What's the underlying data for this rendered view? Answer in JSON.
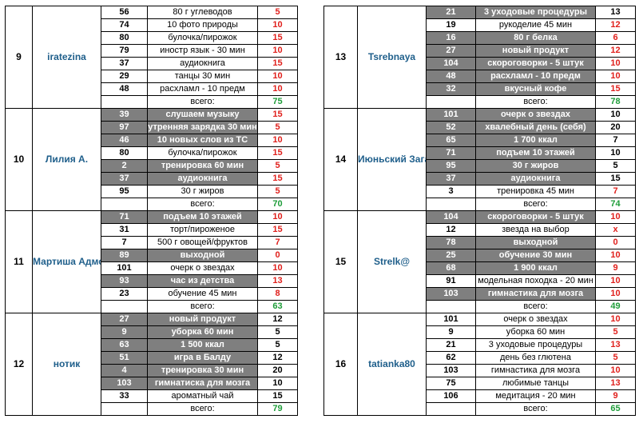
{
  "columns": [
    {
      "blocks": [
        {
          "index": "9",
          "name": "iratezina",
          "rows": [
            {
              "num": "56",
              "task": "80 г углеводов",
              "pts": "5",
              "color": "red",
              "dark": false
            },
            {
              "num": "74",
              "task": "10 фото природы",
              "pts": "10",
              "color": "red",
              "dark": false
            },
            {
              "num": "80",
              "task": "булочка/пирожок",
              "pts": "15",
              "color": "red",
              "dark": false
            },
            {
              "num": "79",
              "task": "иностр язык - 30 мин",
              "pts": "10",
              "color": "red",
              "dark": false
            },
            {
              "num": "37",
              "task": "аудиокнига",
              "pts": "15",
              "color": "red",
              "dark": false
            },
            {
              "num": "29",
              "task": "танцы 30 мин",
              "pts": "10",
              "color": "red",
              "dark": false
            },
            {
              "num": "48",
              "task": "расхламл - 10 предм",
              "pts": "10",
              "color": "red",
              "dark": false
            }
          ],
          "total_label": "всего:",
          "total": "75"
        },
        {
          "index": "10",
          "name": "Лилия А.",
          "rows": [
            {
              "num": "39",
              "task": "слушаем музыку",
              "pts": "15",
              "color": "red",
              "dark": true
            },
            {
              "num": "97",
              "task": "утренняя зарядка 30 мин",
              "pts": "5",
              "color": "red",
              "dark": true
            },
            {
              "num": "46",
              "task": "10 новых слов из ТС",
              "pts": "10",
              "color": "red",
              "dark": true
            },
            {
              "num": "80",
              "task": "булочка/пирожок",
              "pts": "15",
              "color": "red",
              "dark": false
            },
            {
              "num": "2",
              "task": "тренировка 60 мин",
              "pts": "5",
              "color": "red",
              "dark": true
            },
            {
              "num": "37",
              "task": "аудиокнига",
              "pts": "15",
              "color": "red",
              "dark": true
            },
            {
              "num": "95",
              "task": "30 г жиров",
              "pts": "5",
              "color": "red",
              "dark": false
            }
          ],
          "total_label": "всего:",
          "total": "70"
        },
        {
          "index": "11",
          "name": "Мартиша Адмс",
          "rows": [
            {
              "num": "71",
              "task": "подъем 10 этажей",
              "pts": "10",
              "color": "red",
              "dark": true
            },
            {
              "num": "31",
              "task": "торт/пироженое",
              "pts": "15",
              "color": "red",
              "dark": false
            },
            {
              "num": "7",
              "task": "500 г овощей/фруктов",
              "pts": "7",
              "color": "red",
              "dark": false
            },
            {
              "num": "89",
              "task": "выходной",
              "pts": "0",
              "color": "red",
              "dark": true
            },
            {
              "num": "101",
              "task": "очерк о звездах",
              "pts": "10",
              "color": "red",
              "dark": false
            },
            {
              "num": "93",
              "task": "час из детства",
              "pts": "13",
              "color": "red",
              "dark": true
            },
            {
              "num": "23",
              "task": "обучение 45 мин",
              "pts": "8",
              "color": "red",
              "dark": false
            }
          ],
          "total_label": "всего:",
          "total": "63"
        },
        {
          "index": "12",
          "name": "нотик",
          "rows": [
            {
              "num": "27",
              "task": "новый продукт",
              "pts": "12",
              "color": "black",
              "dark": true
            },
            {
              "num": "9",
              "task": "уборка 60 мин",
              "pts": "5",
              "color": "black",
              "dark": true
            },
            {
              "num": "63",
              "task": "1 500 ккал",
              "pts": "5",
              "color": "black",
              "dark": true
            },
            {
              "num": "51",
              "task": "игра в Балду",
              "pts": "12",
              "color": "black",
              "dark": true
            },
            {
              "num": "4",
              "task": "тренировка 30 мин",
              "pts": "20",
              "color": "black",
              "dark": true
            },
            {
              "num": "103",
              "task": "гимнатиска для мозга",
              "pts": "10",
              "color": "black",
              "dark": true
            },
            {
              "num": "33",
              "task": "ароматный чай",
              "pts": "15",
              "color": "black",
              "dark": false
            }
          ],
          "total_label": "всего:",
          "total": "79"
        }
      ]
    },
    {
      "blocks": [
        {
          "index": "13",
          "name": "Tsrebnaya",
          "rows": [
            {
              "num": "21",
              "task": "3 уходовые процедуры",
              "pts": "13",
              "color": "black",
              "dark": true
            },
            {
              "num": "19",
              "task": "рукоделие 45 мин",
              "pts": "12",
              "color": "red",
              "dark": false
            },
            {
              "num": "16",
              "task": "80 г белка",
              "pts": "6",
              "color": "red",
              "dark": true
            },
            {
              "num": "27",
              "task": "новый продукт",
              "pts": "12",
              "color": "red",
              "dark": true
            },
            {
              "num": "104",
              "task": "скороговорки - 5 штук",
              "pts": "10",
              "color": "red",
              "dark": true
            },
            {
              "num": "48",
              "task": "расхламл - 10 предм",
              "pts": "10",
              "color": "red",
              "dark": true
            },
            {
              "num": "32",
              "task": "вкусный кофе",
              "pts": "15",
              "color": "red",
              "dark": true
            }
          ],
          "total_label": "всего:",
          "total": "78"
        },
        {
          "index": "14",
          "name": "Июньский Загар",
          "rows": [
            {
              "num": "101",
              "task": "очерк о звездах",
              "pts": "10",
              "color": "black",
              "dark": true
            },
            {
              "num": "52",
              "task": "хвалебный день (себя)",
              "pts": "20",
              "color": "black",
              "dark": true
            },
            {
              "num": "65",
              "task": "1 700 ккал",
              "pts": "7",
              "color": "black",
              "dark": true
            },
            {
              "num": "71",
              "task": "подъем 10 этажей",
              "pts": "10",
              "color": "black",
              "dark": true
            },
            {
              "num": "95",
              "task": "30 г жиров",
              "pts": "5",
              "color": "black",
              "dark": true
            },
            {
              "num": "37",
              "task": "аудиокнига",
              "pts": "15",
              "color": "black",
              "dark": true
            },
            {
              "num": "3",
              "task": "тренировка 45 мин",
              "pts": "7",
              "color": "red",
              "dark": false
            }
          ],
          "total_label": "всего:",
          "total": "74"
        },
        {
          "index": "15",
          "name": "Strelk@",
          "rows": [
            {
              "num": "104",
              "task": "скороговорки - 5 штук",
              "pts": "10",
              "color": "red",
              "dark": true
            },
            {
              "num": "12",
              "task": "звезда на выбор",
              "pts": "x",
              "color": "red",
              "dark": false
            },
            {
              "num": "78",
              "task": "выходной",
              "pts": "0",
              "color": "red",
              "dark": true
            },
            {
              "num": "25",
              "task": "обучение 30 мин",
              "pts": "10",
              "color": "red",
              "dark": true
            },
            {
              "num": "68",
              "task": "1 900 ккал",
              "pts": "9",
              "color": "red",
              "dark": true
            },
            {
              "num": "91",
              "task": "модельная походка - 20 мин",
              "pts": "10",
              "color": "red",
              "dark": false
            },
            {
              "num": "103",
              "task": "гимнастика для мозга",
              "pts": "10",
              "color": "red",
              "dark": true
            }
          ],
          "total_label": "всего:",
          "total": "49"
        },
        {
          "index": "16",
          "name": "tatianka80",
          "rows": [
            {
              "num": "101",
              "task": "очерк о звездах",
              "pts": "10",
              "color": "red",
              "dark": false
            },
            {
              "num": "9",
              "task": "уборка 60 мин",
              "pts": "5",
              "color": "red",
              "dark": false
            },
            {
              "num": "21",
              "task": "3 уходовые процедуры",
              "pts": "13",
              "color": "red",
              "dark": false
            },
            {
              "num": "62",
              "task": "день без глютена",
              "pts": "5",
              "color": "red",
              "dark": false
            },
            {
              "num": "103",
              "task": "гимнастика для мозга",
              "pts": "10",
              "color": "red",
              "dark": false
            },
            {
              "num": "75",
              "task": "любимые танцы",
              "pts": "13",
              "color": "red",
              "dark": false
            },
            {
              "num": "106",
              "task": "медитация - 20 мин",
              "pts": "9",
              "color": "red",
              "dark": false
            }
          ],
          "total_label": "всего:",
          "total": "65"
        }
      ]
    }
  ]
}
